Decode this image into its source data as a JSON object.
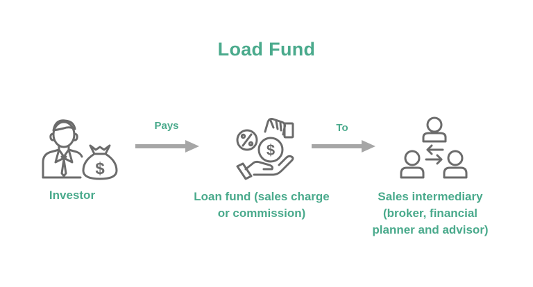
{
  "title": "Load Fund",
  "colors": {
    "accent": "#4aaa8c",
    "icon": "#6b6b6b",
    "arrow": "#a6a6a6"
  },
  "nodes": [
    {
      "id": "investor",
      "icon": "investor-icon",
      "label_lines": [
        "Investor"
      ]
    },
    {
      "id": "loan-fund",
      "icon": "money-hand-icon",
      "label_lines": [
        "Loan fund (sales charge",
        "or commission)"
      ]
    },
    {
      "id": "sales-intermediary",
      "icon": "people-exchange-icon",
      "label_lines": [
        "Sales intermediary",
        "(broker, financial",
        "planner and advisor)"
      ]
    }
  ],
  "edges": [
    {
      "from": "investor",
      "to": "loan-fund",
      "label": "Pays"
    },
    {
      "from": "loan-fund",
      "to": "sales-intermediary",
      "label": "To"
    }
  ]
}
